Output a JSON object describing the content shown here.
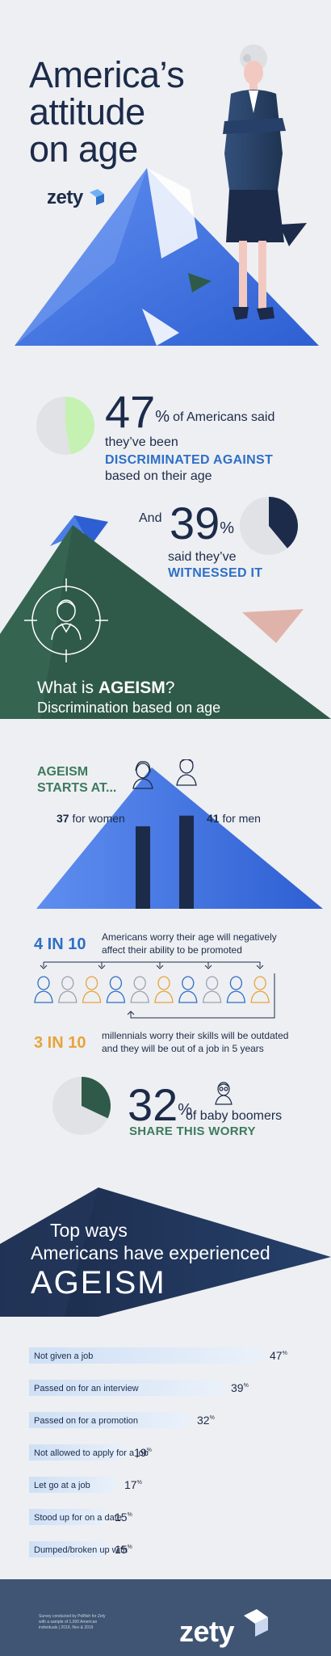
{
  "header": {
    "title_line1": "America’s",
    "title_line2": "attitude",
    "title_line3": "on age",
    "logo": "zety"
  },
  "discriminated": {
    "value": "47",
    "pct": "%",
    "line1": "of Americans said",
    "line2": "they’ve been",
    "highlight": "DISCRIMINATED AGAINST",
    "line3": "based on their age",
    "fraction": 0.47
  },
  "witnessed": {
    "prefix": "And",
    "value": "39",
    "pct": "%",
    "line1": "said they’ve",
    "highlight": "WITNESSED IT",
    "fraction": 0.39
  },
  "definition": {
    "question_prefix": "What is ",
    "question_highlight": "AGEISM",
    "question_suffix": "?",
    "answer": "Discrimination based on age"
  },
  "starts": {
    "heading_line1": "AGEISM",
    "heading_line2": "STARTS AT...",
    "women_value": "37",
    "women_label": " for women",
    "men_value": "41",
    "men_label": " for men"
  },
  "promotion": {
    "stat": "4 IN 10",
    "line1": "Americans worry their age will negatively",
    "line2": "affect their ability to be promoted"
  },
  "millennials": {
    "stat": "3 IN 10",
    "line1": "millennials worry their skills will be outdated",
    "line2": "and they will be out of a job in 5 years"
  },
  "boomers": {
    "value": "32",
    "pct": "%",
    "line1": "of baby boomers",
    "highlight": "SHARE THIS WORRY",
    "fraction": 0.32
  },
  "ways": {
    "line1": "Top ways",
    "line2": "Americans have experienced",
    "line3": "AGEISM"
  },
  "chart_data": {
    "type": "bar",
    "categories": [
      "Not given a job",
      "Passed on for an interview",
      "Passed on for a promotion",
      "Not allowed to apply for a job",
      "Let go at a job",
      "Stood up for on a date",
      "Dumped/broken up with"
    ],
    "values": [
      47,
      39,
      32,
      19,
      17,
      15,
      15
    ],
    "unit": "%",
    "xlim": [
      0,
      50
    ]
  },
  "footer": {
    "note_line1": "Survey conducted by Pollfish for Zety",
    "note_line2": "with a sample of 1,000 American",
    "note_line3": "individuals | 2019, Nov & 2019",
    "logo": "zety"
  },
  "colors": {
    "navy": "#1c2b4a",
    "blue": "#2e6fc6",
    "green": "#3d7a5e",
    "orange": "#e7a43a",
    "mint": "#c5f2b2"
  }
}
